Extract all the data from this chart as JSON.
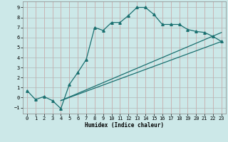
{
  "xlabel": "Humidex (Indice chaleur)",
  "bg_color": "#cce8e8",
  "line_color": "#1a7070",
  "xlim": [
    -0.5,
    23.5
  ],
  "ylim": [
    -1.6,
    9.6
  ],
  "xticks": [
    0,
    1,
    2,
    3,
    4,
    5,
    6,
    7,
    8,
    9,
    10,
    11,
    12,
    13,
    14,
    15,
    16,
    17,
    18,
    19,
    20,
    21,
    22,
    23
  ],
  "yticks": [
    -1,
    0,
    1,
    2,
    3,
    4,
    5,
    6,
    7,
    8,
    9
  ],
  "line1_x": [
    0,
    1,
    2,
    3,
    4,
    5,
    6,
    7,
    8,
    9,
    10,
    11,
    12,
    13,
    14,
    15,
    16,
    17,
    18,
    19,
    20,
    21,
    22,
    23
  ],
  "line1_y": [
    0.7,
    -0.2,
    0.1,
    -0.3,
    -1.1,
    1.3,
    2.5,
    3.8,
    7.0,
    6.7,
    7.5,
    7.5,
    8.2,
    9.0,
    9.0,
    8.3,
    7.3,
    7.3,
    7.3,
    6.8,
    6.6,
    6.5,
    6.1,
    5.6
  ],
  "line2_x": [
    4,
    23
  ],
  "line2_y": [
    -0.3,
    5.6
  ],
  "line3_x": [
    4,
    23
  ],
  "line3_y": [
    -0.3,
    6.5
  ]
}
